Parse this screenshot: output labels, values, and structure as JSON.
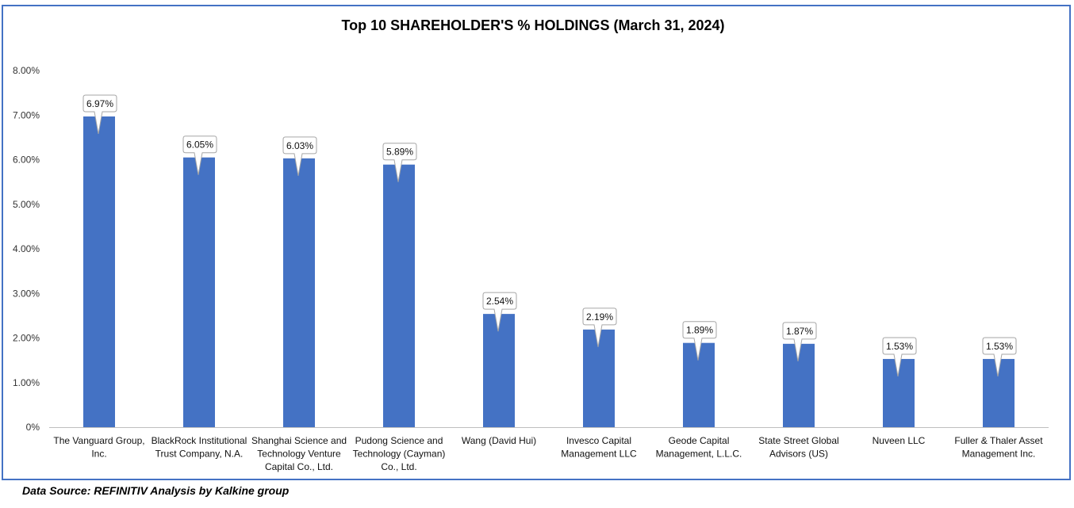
{
  "chart_data": {
    "type": "bar",
    "title": "Top 10 SHAREHOLDER'S % HOLDINGS (March 31, 2024)",
    "xlabel": "",
    "ylabel": "",
    "ylim": [
      0,
      8
    ],
    "yticks": [
      "0%",
      "1.00%",
      "2.00%",
      "3.00%",
      "4.00%",
      "5.00%",
      "6.00%",
      "7.00%",
      "8.00%"
    ],
    "categories": [
      [
        "The Vanguard Group,",
        "Inc."
      ],
      [
        "BlackRock Institutional",
        "Trust Company, N.A."
      ],
      [
        "Shanghai Science and",
        "Technology Venture",
        "Capital Co., Ltd."
      ],
      [
        "Pudong Science and",
        "Technology (Cayman)",
        "Co., Ltd."
      ],
      [
        "Wang (David Hui)"
      ],
      [
        "Invesco Capital",
        "Management LLC"
      ],
      [
        "Geode Capital",
        "Management, L.L.C."
      ],
      [
        "State Street Global",
        "Advisors (US)"
      ],
      [
        "Nuveen LLC"
      ],
      [
        "Fuller & Thaler Asset",
        "Management Inc."
      ]
    ],
    "values": [
      6.97,
      6.05,
      6.03,
      5.89,
      2.54,
      2.19,
      1.89,
      1.87,
      1.53,
      1.53
    ],
    "data_labels": [
      "6.97%",
      "6.05%",
      "6.03%",
      "5.89%",
      "2.54%",
      "2.19%",
      "1.89%",
      "1.87%",
      "1.53%",
      "1.53%"
    ],
    "grid": false,
    "legend": "none",
    "bar_color": "#4472C4"
  },
  "footer": {
    "source": "Data Source: REFINITIV Analysis by Kalkine group"
  },
  "colors": {
    "frame_border": "#4472C4",
    "axis_line": "#BFBFBF",
    "callout_border": "#A6A6A6"
  }
}
